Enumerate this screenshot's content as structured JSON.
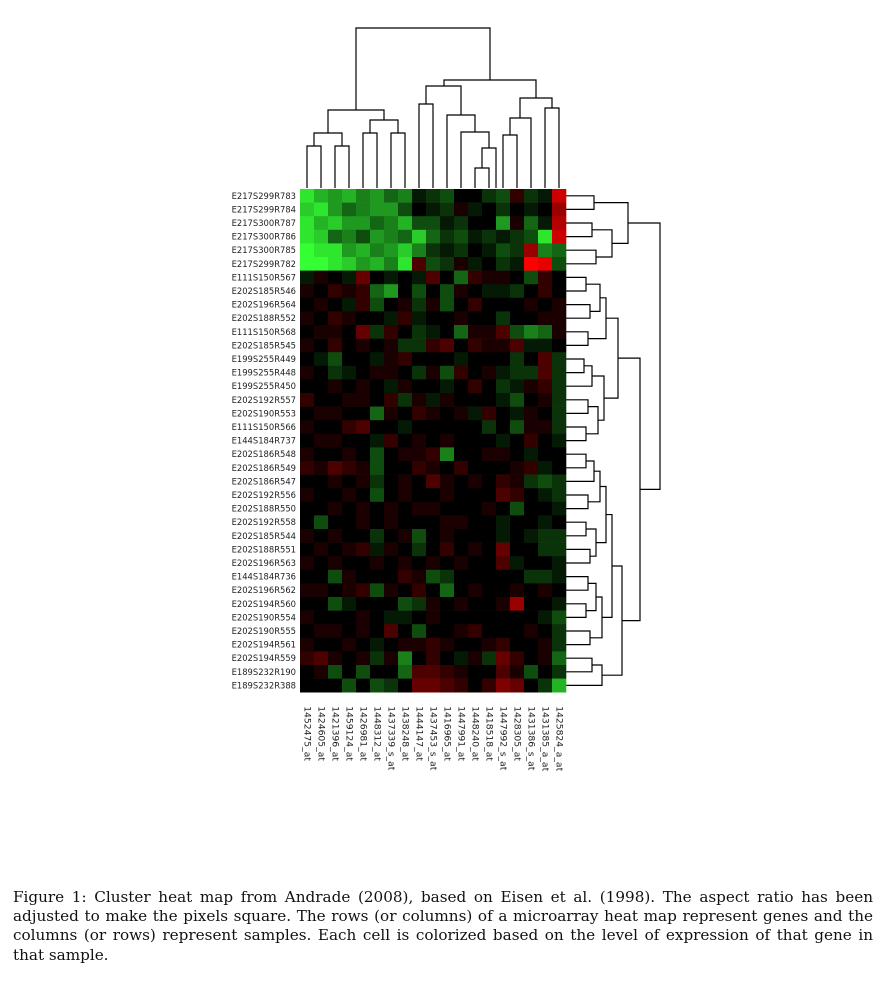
{
  "chart_data": {
    "type": "heatmap",
    "title": "",
    "xlabel": "",
    "ylabel": "",
    "colors": {
      "low": "#33ff33",
      "mid": "#000000",
      "high": "#ff0000"
    },
    "rows": [
      "E217S299R783",
      "E217S299R784",
      "E217S300R787",
      "E217S300R786",
      "E217S300R785",
      "E217S299R782",
      "E111S150R567",
      "E202S185R546",
      "E202S196R564",
      "E202S188R552",
      "E111S150R568",
      "E202S185R545",
      "E199S255R449",
      "E199S255R448",
      "E199S255R450",
      "E202S192R557",
      "E202S190R553",
      "E111S150R566",
      "E144S184R737",
      "E202S186R548",
      "E202S186R549",
      "E202S186R547",
      "E202S192R556",
      "E202S188R550",
      "E202S192R558",
      "E202S185R544",
      "E202S188R551",
      "E202S196R563",
      "E144S184R736",
      "E202S196R562",
      "E202S194R560",
      "E202S190R554",
      "E202S190R555",
      "E202S194R561",
      "E202S194R559",
      "E189S232R190",
      "E189S232R388"
    ],
    "columns": [
      "1452475_at",
      "1424605_at",
      "1421396_at",
      "1459124_at",
      "1426981_at",
      "1448312_at",
      "1437339_s_at",
      "1438248_at",
      "1444147_at",
      "1437453_s_at",
      "1416965_at",
      "1447991_at",
      "1448240_at",
      "1418518_at",
      "1447992_s_at",
      "1428305_at",
      "1431386_s_at",
      "1431385_a_at",
      "1425824_a_at"
    ],
    "values": [
      [
        -0.9,
        -0.7,
        -0.6,
        -0.7,
        -0.5,
        -0.6,
        -0.4,
        -0.5,
        -0.1,
        -0.2,
        -0.3,
        0,
        0,
        -0.2,
        -0.3,
        0.2,
        -0.2,
        -0.1,
        0.8
      ],
      [
        -0.8,
        -0.9,
        -0.6,
        -0.4,
        -0.5,
        -0.6,
        -0.6,
        -0.3,
        0,
        -0.1,
        -0.2,
        0.1,
        -0.1,
        0,
        -0.2,
        0,
        -0.1,
        0,
        0.6
      ],
      [
        -0.9,
        -0.7,
        -0.8,
        -0.6,
        -0.6,
        -0.4,
        -0.5,
        -0.7,
        -0.3,
        -0.3,
        -0.1,
        -0.2,
        0,
        0,
        -0.6,
        0.1,
        -0.4,
        -0.1,
        0.7
      ],
      [
        -0.9,
        -0.8,
        -0.4,
        -0.5,
        -0.3,
        -0.6,
        -0.5,
        -0.4,
        -0.8,
        -0.4,
        -0.2,
        -0.3,
        -0.1,
        -0.2,
        -0.1,
        -0.2,
        -0.3,
        -0.9,
        0.8
      ],
      [
        -1,
        -0.9,
        -0.9,
        -0.6,
        -0.7,
        -0.5,
        -0.6,
        -0.8,
        -0.5,
        -0.2,
        -0.1,
        -0.2,
        0,
        -0.1,
        -0.3,
        -0.2,
        0.6,
        -0.5,
        -0.4
      ],
      [
        -1,
        -1,
        -0.9,
        -0.8,
        -0.6,
        -0.7,
        -0.5,
        -0.9,
        0.3,
        -0.3,
        -0.2,
        0.1,
        -0.1,
        0,
        -0.2,
        -0.1,
        1,
        0.9,
        -0.3
      ],
      [
        -0.1,
        0.1,
        0,
        -0.1,
        0.4,
        0,
        -0.1,
        0,
        -0.1,
        0.3,
        0,
        -0.4,
        0.2,
        0.1,
        0.1,
        0,
        -0.3,
        0.2,
        0
      ],
      [
        0.1,
        0,
        0.2,
        0.1,
        0.2,
        -0.4,
        -0.6,
        0,
        -0.3,
        0,
        -0.3,
        0.1,
        0,
        -0.1,
        -0.1,
        -0.2,
        0,
        0.2,
        0
      ],
      [
        0,
        0.1,
        0,
        -0.1,
        0.2,
        -0.3,
        0,
        0.1,
        -0.2,
        0.1,
        -0.3,
        0,
        0.2,
        0,
        0,
        0,
        0.1,
        0,
        0.1
      ],
      [
        0.1,
        0,
        0.2,
        0.1,
        0,
        0,
        -0.1,
        0.2,
        -0.1,
        0,
        0,
        0.1,
        0,
        0,
        -0.2,
        0,
        0,
        0.1,
        0.1
      ],
      [
        0,
        0.1,
        0.1,
        0,
        0.4,
        -0.2,
        0.2,
        0,
        -0.2,
        -0.1,
        0,
        -0.4,
        0.1,
        0.1,
        0.3,
        -0.3,
        -0.5,
        -0.4,
        0.1
      ],
      [
        0.1,
        0,
        0.2,
        0,
        0.1,
        0,
        0.1,
        -0.2,
        -0.2,
        0.2,
        0.3,
        0,
        0.2,
        0.1,
        0.1,
        0.3,
        -0.1,
        -0.1,
        0
      ],
      [
        0,
        -0.1,
        -0.3,
        0,
        0,
        -0.1,
        0.1,
        0.2,
        0,
        0,
        0,
        -0.1,
        0,
        0,
        0,
        -0.2,
        0,
        0.3,
        -0.2
      ],
      [
        0.1,
        0,
        -0.2,
        -0.1,
        0,
        0.1,
        0.1,
        0,
        -0.2,
        0.1,
        -0.3,
        0.2,
        0,
        0.1,
        -0.1,
        -0.2,
        -0.2,
        0.3,
        -0.2
      ],
      [
        0,
        0,
        0.1,
        0,
        0.1,
        0,
        -0.1,
        0.1,
        0,
        0,
        -0.1,
        0,
        0.2,
        0,
        -0.2,
        -0.1,
        0.1,
        0.2,
        -0.2
      ],
      [
        0.2,
        0,
        0,
        0.1,
        0.1,
        0,
        0.2,
        -0.2,
        0.1,
        -0.1,
        0.1,
        0,
        0,
        0,
        -0.1,
        -0.3,
        0,
        0.1,
        -0.2
      ],
      [
        0,
        0.1,
        0.1,
        0,
        0,
        -0.4,
        0.1,
        0,
        0.2,
        0.1,
        0,
        0.1,
        -0.1,
        0.2,
        0,
        -0.1,
        0.1,
        0,
        -0.2
      ],
      [
        0.1,
        0,
        0,
        0.2,
        0.3,
        0,
        0,
        -0.1,
        0,
        0,
        0,
        0,
        0,
        -0.2,
        0,
        -0.3,
        0.1,
        0.1,
        -0.2
      ],
      [
        0,
        0.1,
        0.1,
        0,
        0,
        -0.1,
        0.2,
        0,
        0.1,
        0,
        0.1,
        0,
        0,
        0,
        -0.1,
        0,
        0.2,
        0,
        -0.1
      ],
      [
        0.1,
        0,
        0,
        0.1,
        0,
        -0.3,
        0,
        0.1,
        0.1,
        0.2,
        -0.5,
        0,
        0,
        0.1,
        0.1,
        0,
        -0.1,
        0,
        0
      ],
      [
        0.2,
        0.1,
        0.3,
        0.2,
        0.1,
        -0.3,
        0,
        0,
        0.2,
        0.1,
        0,
        0.2,
        0,
        0,
        0,
        0.1,
        0.2,
        -0.1,
        0
      ],
      [
        0,
        0,
        0.1,
        0,
        0.1,
        -0.2,
        0,
        0.1,
        0,
        0.3,
        0.1,
        0,
        0.1,
        0,
        0.2,
        0.1,
        -0.2,
        -0.3,
        -0.2
      ],
      [
        0.1,
        0,
        0,
        0.1,
        0,
        -0.3,
        0,
        0.1,
        0,
        0,
        0.1,
        0,
        0,
        0,
        0.3,
        0.2,
        0,
        -0.1,
        -0.2
      ],
      [
        0,
        0,
        0.1,
        0,
        0.1,
        0,
        0.1,
        0,
        0.1,
        0.1,
        0,
        0,
        0,
        0.1,
        0,
        -0.3,
        0,
        0,
        -0.1
      ],
      [
        0,
        -0.3,
        0,
        0,
        0.1,
        0,
        0.1,
        0,
        0,
        0,
        0.1,
        0.1,
        0,
        0,
        -0.1,
        0,
        0,
        -0.1,
        0
      ],
      [
        0.1,
        0,
        0.1,
        0,
        0,
        -0.2,
        0,
        0.1,
        -0.3,
        0,
        0.1,
        0,
        0,
        0,
        -0.1,
        0,
        -0.1,
        -0.2,
        -0.2
      ],
      [
        0,
        0.1,
        0,
        0.1,
        0.2,
        -0.1,
        0.1,
        0,
        -0.2,
        0,
        0.2,
        0,
        0.1,
        0,
        0.4,
        0,
        0,
        -0.2,
        -0.2
      ],
      [
        0.1,
        0,
        0.1,
        0,
        0,
        0.1,
        0,
        0.1,
        0,
        0.1,
        0,
        0.1,
        0,
        0,
        0.3,
        -0.1,
        0,
        0,
        -0.1
      ],
      [
        0,
        0,
        -0.3,
        0.1,
        0,
        0,
        0,
        0.2,
        0.1,
        -0.3,
        -0.2,
        0,
        0,
        0,
        0,
        0,
        -0.2,
        -0.2,
        -0.1
      ],
      [
        0.1,
        0.1,
        0,
        0.1,
        0.2,
        -0.3,
        0.1,
        0,
        0.2,
        0,
        -0.4,
        0,
        0.1,
        0,
        0,
        0.1,
        0,
        0.1,
        0
      ],
      [
        0,
        0,
        -0.3,
        -0.1,
        0,
        0,
        0,
        -0.3,
        -0.2,
        0.1,
        0,
        0.1,
        0,
        0,
        0.1,
        0.6,
        0,
        0,
        -0.1
      ],
      [
        0.1,
        0,
        0,
        0,
        0.1,
        0,
        -0.1,
        -0.1,
        0,
        0.1,
        0,
        0,
        0,
        0,
        0,
        0,
        0,
        -0.1,
        -0.3
      ],
      [
        0,
        0.1,
        0.1,
        0,
        0.1,
        0,
        0.3,
        0,
        -0.3,
        0,
        0,
        0.1,
        0.2,
        0,
        0,
        0,
        0.1,
        0,
        -0.2
      ],
      [
        0.1,
        0,
        0,
        0.1,
        0,
        -0.1,
        0,
        0.1,
        0.1,
        0.2,
        0.1,
        0,
        0,
        0.1,
        0.2,
        0,
        0,
        0.1,
        -0.2
      ],
      [
        0.2,
        0.3,
        0.1,
        0,
        0.1,
        -0.2,
        0.1,
        -0.5,
        0,
        0.2,
        0,
        -0.1,
        0.1,
        -0.2,
        0.4,
        0.2,
        0,
        0.1,
        -0.4
      ],
      [
        0,
        0.1,
        -0.3,
        0,
        -0.3,
        0,
        0,
        -0.4,
        0.3,
        0.3,
        0.2,
        0.1,
        0,
        0,
        0.3,
        0.1,
        -0.3,
        0,
        -0.2
      ],
      [
        0,
        0,
        0,
        -0.3,
        0,
        -0.3,
        -0.2,
        0,
        0.4,
        0.4,
        0.3,
        0.2,
        0,
        0.2,
        0.5,
        0.4,
        0,
        -0.2,
        -0.7
      ]
    ]
  },
  "caption": "Figure 1: Cluster heat map from Andrade (2008), based on Eisen et al. (1998). The aspect ratio has been adjusted to make the pixels square. The rows (or columns) of a microarray heat map represent genes and the columns (or rows) represent samples. Each cell is colorized based on the level of expression of that gene in that sample."
}
